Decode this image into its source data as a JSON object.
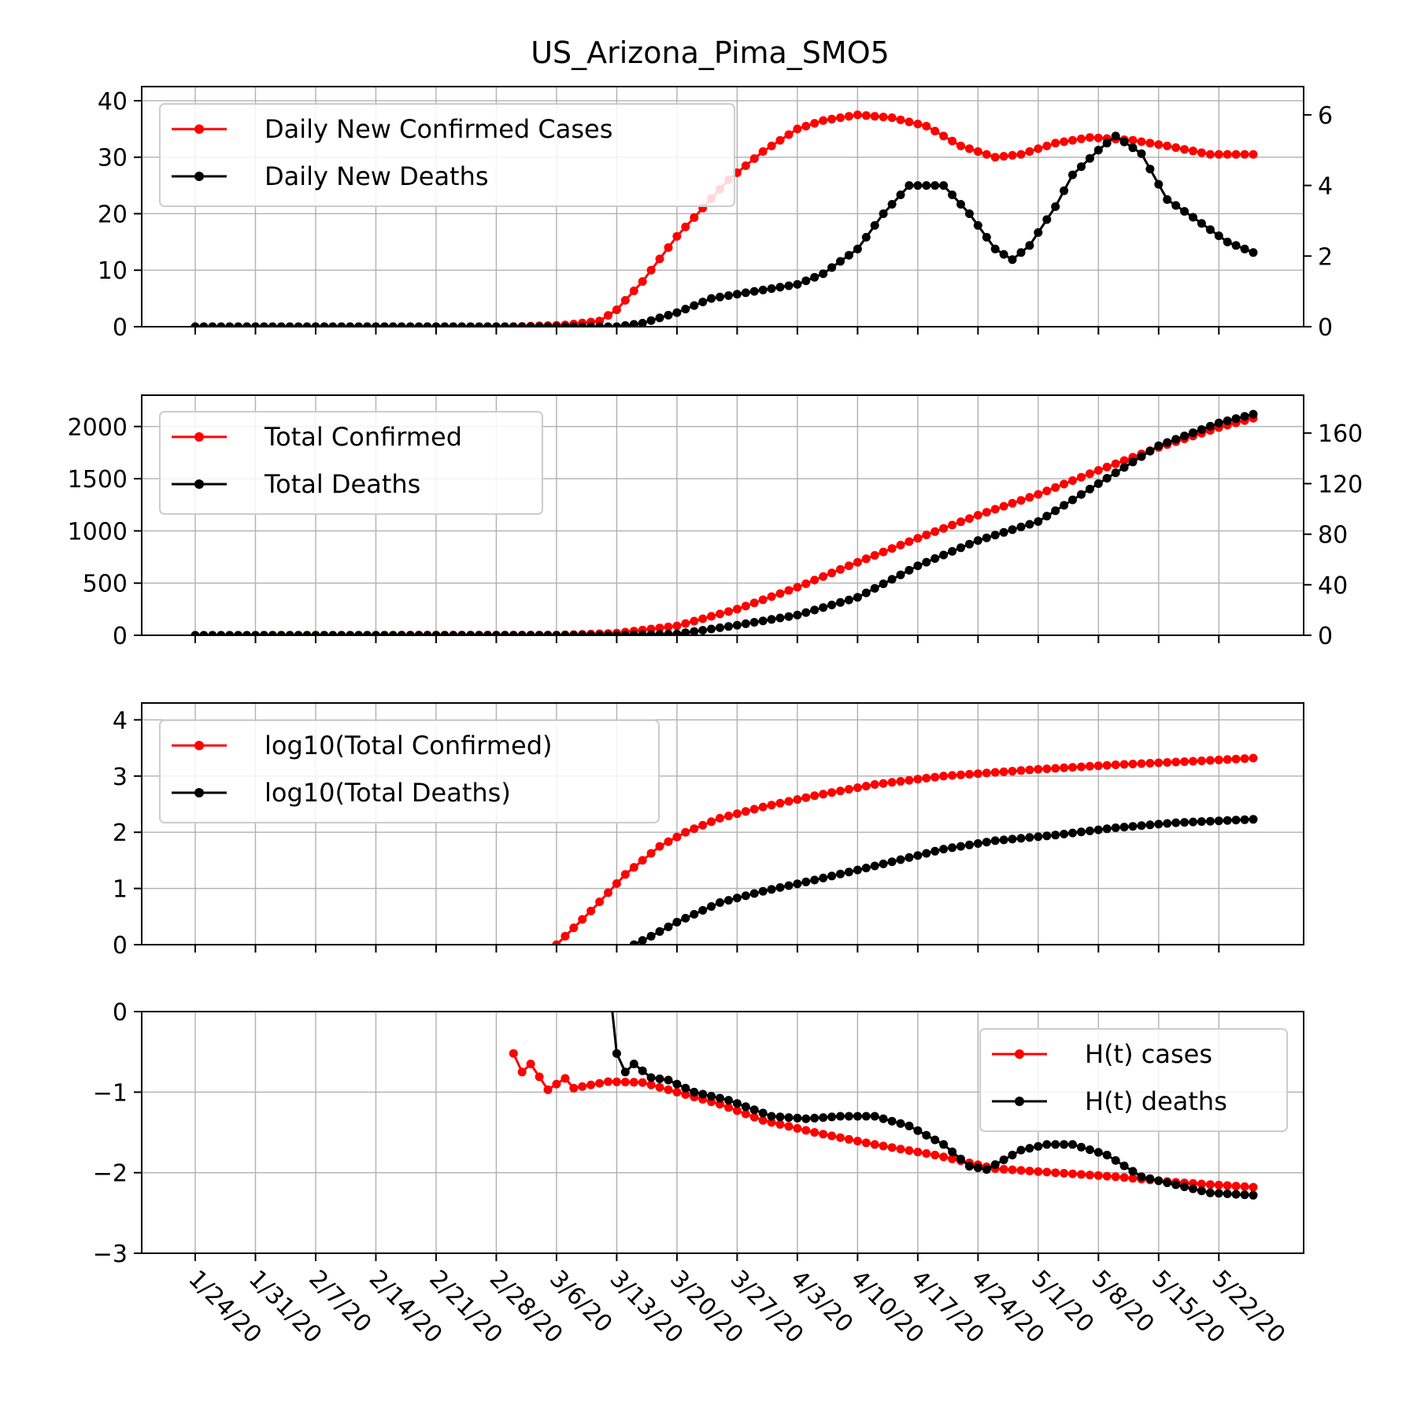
{
  "figure": {
    "title": "US_Arizona_Pima_SMO5"
  },
  "colors": {
    "cases": "#ff0000",
    "deaths": "#000000",
    "grid": "#b0b0b0"
  },
  "chart_data": [
    {
      "type": "line",
      "id": "daily",
      "xlabel": "",
      "ylabel": "",
      "ylim": [
        0,
        42.5
      ],
      "yticks": [
        0,
        10,
        20,
        30,
        40
      ],
      "y2lim": [
        0,
        6.8
      ],
      "y2ticks": [
        0,
        2,
        4,
        6
      ],
      "grid": true,
      "legend_position": "upper-left",
      "series": [
        {
          "name": "Daily New Confirmed Cases",
          "axis": "left",
          "color": "#ff0000",
          "points": [
            [
              "1/24/20",
              0
            ],
            [
              "3/1/20",
              0
            ],
            [
              "3/7/20",
              0.3
            ],
            [
              "3/11/20",
              1
            ],
            [
              "3/13/20",
              3
            ],
            [
              "3/16/20",
              8
            ],
            [
              "3/20/20",
              16
            ],
            [
              "3/23/20",
              21
            ],
            [
              "3/26/20",
              26
            ],
            [
              "3/30/20",
              31
            ],
            [
              "4/3/20",
              35
            ],
            [
              "4/6/20",
              36.5
            ],
            [
              "4/10/20",
              37.5
            ],
            [
              "4/14/20",
              37
            ],
            [
              "4/18/20",
              35.5
            ],
            [
              "4/22/20",
              32
            ],
            [
              "4/26/20",
              30
            ],
            [
              "4/29/20",
              30.5
            ],
            [
              "5/3/20",
              32.5
            ],
            [
              "5/7/20",
              33.5
            ],
            [
              "5/12/20",
              33
            ],
            [
              "5/16/20",
              32
            ],
            [
              "5/21/20",
              30.5
            ],
            [
              "5/26/20",
              30.5
            ]
          ]
        },
        {
          "name": "Daily New Deaths",
          "axis": "right",
          "color": "#000000",
          "points": [
            [
              "1/24/20",
              0
            ],
            [
              "3/13/20",
              0
            ],
            [
              "3/16/20",
              0.1
            ],
            [
              "3/20/20",
              0.4
            ],
            [
              "3/24/20",
              0.8
            ],
            [
              "3/29/20",
              1.0
            ],
            [
              "4/3/20",
              1.2
            ],
            [
              "4/6/20",
              1.5
            ],
            [
              "4/10/20",
              2.2
            ],
            [
              "4/13/20",
              3.2
            ],
            [
              "4/16/20",
              4.0
            ],
            [
              "4/20/20",
              4.0
            ],
            [
              "4/23/20",
              3.2
            ],
            [
              "4/26/20",
              2.2
            ],
            [
              "4/28/20",
              1.9
            ],
            [
              "4/30/20",
              2.3
            ],
            [
              "5/3/20",
              3.4
            ],
            [
              "5/5/20",
              4.3
            ],
            [
              "5/8/20",
              5.0
            ],
            [
              "5/10/20",
              5.4
            ],
            [
              "5/13/20",
              4.9
            ],
            [
              "5/16/20",
              3.6
            ],
            [
              "5/19/20",
              3.1
            ],
            [
              "5/23/20",
              2.4
            ],
            [
              "5/26/20",
              2.1
            ]
          ]
        }
      ]
    },
    {
      "type": "line",
      "id": "total",
      "xlabel": "",
      "ylabel": "",
      "ylim": [
        0,
        2300
      ],
      "yticks": [
        0,
        500,
        1000,
        1500,
        2000
      ],
      "y2lim": [
        0,
        190
      ],
      "y2ticks": [
        0,
        40,
        80,
        120,
        160
      ],
      "grid": true,
      "legend_position": "upper-left",
      "series": [
        {
          "name": "Total Confirmed",
          "axis": "left",
          "color": "#ff0000",
          "points": [
            [
              "1/24/20",
              0
            ],
            [
              "3/6/20",
              2
            ],
            [
              "3/13/20",
              20
            ],
            [
              "3/20/20",
              90
            ],
            [
              "3/27/20",
              250
            ],
            [
              "4/3/20",
              460
            ],
            [
              "4/10/20",
              700
            ],
            [
              "4/17/20",
              930
            ],
            [
              "4/24/20",
              1150
            ],
            [
              "5/1/20",
              1350
            ],
            [
              "5/8/20",
              1580
            ],
            [
              "5/15/20",
              1800
            ],
            [
              "5/22/20",
              1990
            ],
            [
              "5/26/20",
              2080
            ]
          ]
        },
        {
          "name": "Total Deaths",
          "axis": "right",
          "color": "#000000",
          "points": [
            [
              "1/24/20",
              0
            ],
            [
              "3/13/20",
              0
            ],
            [
              "3/20/20",
              1
            ],
            [
              "3/27/20",
              8
            ],
            [
              "4/3/20",
              16
            ],
            [
              "4/10/20",
              30
            ],
            [
              "4/17/20",
              55
            ],
            [
              "4/24/20",
              75
            ],
            [
              "5/1/20",
              90
            ],
            [
              "5/8/20",
              120
            ],
            [
              "5/15/20",
              150
            ],
            [
              "5/22/20",
              168
            ],
            [
              "5/26/20",
              175
            ]
          ]
        }
      ]
    },
    {
      "type": "line",
      "id": "log",
      "xlabel": "",
      "ylabel": "",
      "ylim": [
        0,
        4.3
      ],
      "yticks": [
        0,
        1,
        2,
        3,
        4
      ],
      "grid": true,
      "legend_position": "upper-left",
      "series": [
        {
          "name": "log10(Total Confirmed)",
          "axis": "left",
          "color": "#ff0000",
          "points": [
            [
              "3/6/20",
              0
            ],
            [
              "3/10/20",
              0.6
            ],
            [
              "3/14/20",
              1.25
            ],
            [
              "3/18/20",
              1.75
            ],
            [
              "3/21/20",
              2.0
            ],
            [
              "3/25/20",
              2.25
            ],
            [
              "3/30/20",
              2.45
            ],
            [
              "4/5/20",
              2.65
            ],
            [
              "4/12/20",
              2.85
            ],
            [
              "4/20/20",
              3.0
            ],
            [
              "5/1/20",
              3.12
            ],
            [
              "5/10/20",
              3.2
            ],
            [
              "5/20/20",
              3.27
            ],
            [
              "5/26/20",
              3.32
            ]
          ]
        },
        {
          "name": "log10(Total Deaths)",
          "axis": "left",
          "color": "#000000",
          "points": [
            [
              "3/15/20",
              0
            ],
            [
              "3/17/20",
              0.15
            ],
            [
              "3/20/20",
              0.4
            ],
            [
              "3/25/20",
              0.75
            ],
            [
              "3/30/20",
              0.95
            ],
            [
              "4/5/20",
              1.15
            ],
            [
              "4/12/20",
              1.4
            ],
            [
              "4/20/20",
              1.7
            ],
            [
              "4/26/20",
              1.85
            ],
            [
              "5/3/20",
              1.95
            ],
            [
              "5/10/20",
              2.08
            ],
            [
              "5/17/20",
              2.17
            ],
            [
              "5/26/20",
              2.23
            ]
          ]
        }
      ]
    },
    {
      "type": "line",
      "id": "hurst",
      "xlabel": "",
      "ylabel": "",
      "ylim": [
        -3,
        0
      ],
      "yticks": [
        0,
        -1,
        -2,
        -3
      ],
      "yticklabels": [
        "0",
        "−1",
        "−2",
        "−3"
      ],
      "grid": true,
      "legend_position": "upper-right",
      "series": [
        {
          "name": "H(t) cases",
          "axis": "left",
          "color": "#ff0000",
          "points": [
            [
              "3/1/20",
              -0.52
            ],
            [
              "3/2/20",
              -0.75
            ],
            [
              "3/3/20",
              -0.65
            ],
            [
              "3/5/20",
              -0.97
            ],
            [
              "3/7/20",
              -0.83
            ],
            [
              "3/8/20",
              -0.95
            ],
            [
              "3/12/20",
              -0.87
            ],
            [
              "3/16/20",
              -0.88
            ],
            [
              "3/20/20",
              -1.0
            ],
            [
              "3/25/20",
              -1.15
            ],
            [
              "3/30/20",
              -1.35
            ],
            [
              "4/5/20",
              -1.5
            ],
            [
              "4/12/20",
              -1.65
            ],
            [
              "4/19/20",
              -1.78
            ],
            [
              "4/26/20",
              -1.95
            ],
            [
              "5/3/20",
              -2.0
            ],
            [
              "5/10/20",
              -2.05
            ],
            [
              "5/17/20",
              -2.12
            ],
            [
              "5/26/20",
              -2.18
            ]
          ]
        },
        {
          "name": "H(t) deaths",
          "axis": "left",
          "color": "#000000",
          "points": [
            [
              "3/12/20",
              0.5
            ],
            [
              "3/13/20",
              -0.52
            ],
            [
              "3/14/20",
              -0.75
            ],
            [
              "3/15/20",
              -0.65
            ],
            [
              "3/17/20",
              -0.82
            ],
            [
              "3/19/20",
              -0.85
            ],
            [
              "3/22/20",
              -1.0
            ],
            [
              "3/26/20",
              -1.1
            ],
            [
              "3/31/20",
              -1.3
            ],
            [
              "4/4/20",
              -1.33
            ],
            [
              "4/8/20",
              -1.3
            ],
            [
              "4/12/20",
              -1.3
            ],
            [
              "4/16/20",
              -1.42
            ],
            [
              "4/20/20",
              -1.65
            ],
            [
              "4/23/20",
              -1.92
            ],
            [
              "4/25/20",
              -1.96
            ],
            [
              "4/29/20",
              -1.72
            ],
            [
              "5/2/20",
              -1.65
            ],
            [
              "5/5/20",
              -1.65
            ],
            [
              "5/9/20",
              -1.78
            ],
            [
              "5/13/20",
              -2.05
            ],
            [
              "5/17/20",
              -2.15
            ],
            [
              "5/21/20",
              -2.25
            ],
            [
              "5/26/20",
              -2.28
            ]
          ]
        }
      ]
    }
  ],
  "x_axis": {
    "start_date": "1/24/20",
    "end_date": "5/26/20",
    "tick_labels": [
      "1/24/20",
      "1/31/20",
      "2/7/20",
      "2/14/20",
      "2/21/20",
      "2/28/20",
      "3/6/20",
      "3/13/20",
      "3/20/20",
      "3/27/20",
      "4/3/20",
      "4/10/20",
      "4/17/20",
      "4/24/20",
      "5/1/20",
      "5/8/20",
      "5/15/20",
      "5/22/20"
    ]
  }
}
